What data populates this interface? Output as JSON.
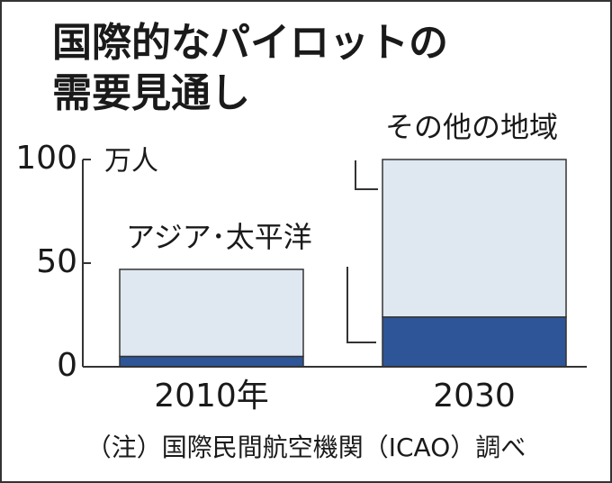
{
  "chart_data": {
    "type": "stacked_bar",
    "title": [
      "国際的なパイロットの",
      "需要見通し"
    ],
    "y_unit": "万人",
    "categories": [
      "2010年",
      "2030"
    ],
    "series": [
      {
        "name": "アジア･太平洋",
        "color": "#2d5597",
        "values": [
          5,
          24
        ]
      },
      {
        "name": "その他の地域",
        "color": "#dfe7f0",
        "values": [
          42,
          76
        ]
      }
    ],
    "ylim": [
      0,
      100
    ],
    "yticks": [
      0,
      50,
      100
    ],
    "note": "（注）国際民間航空機関（ICAO）調べ"
  }
}
